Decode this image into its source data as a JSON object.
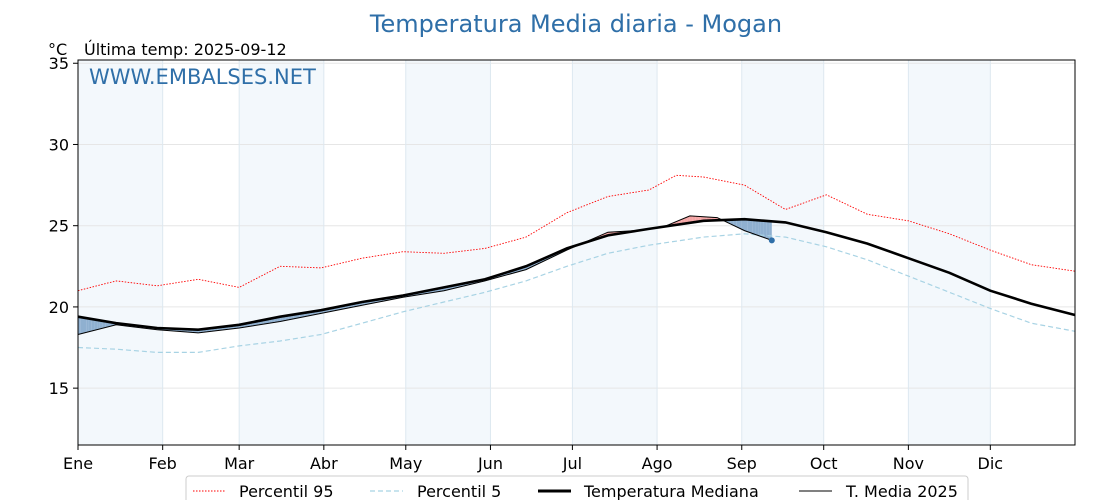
{
  "chart_data": {
    "type": "line",
    "title": "Temperatura Media diaria - Mogan",
    "ylabel": "°C",
    "subtitle": "Última temp: 2025-09-12",
    "watermark": "WWW.EMBALSES.NET",
    "xlim": [
      1,
      366
    ],
    "ylim": [
      11.5,
      35.2
    ],
    "yticks": [
      15,
      20,
      25,
      30,
      35
    ],
    "grid": true,
    "legend_position": "bottom",
    "month_ticks": [
      {
        "label": "Ene",
        "day": 1
      },
      {
        "label": "Feb",
        "day": 32
      },
      {
        "label": "Mar",
        "day": 60
      },
      {
        "label": "Abr",
        "day": 91
      },
      {
        "label": "May",
        "day": 121
      },
      {
        "label": "Jun",
        "day": 152
      },
      {
        "label": "Jul",
        "day": 182
      },
      {
        "label": "Ago",
        "day": 213
      },
      {
        "label": "Sep",
        "day": 244
      },
      {
        "label": "Oct",
        "day": 274
      },
      {
        "label": "Nov",
        "day": 305
      },
      {
        "label": "Dic",
        "day": 335
      }
    ],
    "shaded_month_bands": [
      [
        1,
        32
      ],
      [
        60,
        91
      ],
      [
        121,
        152
      ],
      [
        182,
        213
      ],
      [
        244,
        274
      ],
      [
        305,
        335
      ]
    ],
    "series": [
      {
        "name": "Percentil 95",
        "color": "#ff0000",
        "style": "dotted",
        "x": [
          1,
          15,
          30,
          45,
          60,
          75,
          90,
          105,
          120,
          135,
          150,
          165,
          180,
          195,
          210,
          220,
          230,
          245,
          260,
          275,
          290,
          305,
          320,
          335,
          350,
          366
        ],
        "values": [
          21.0,
          21.6,
          21.3,
          21.7,
          21.2,
          22.5,
          22.4,
          23.0,
          23.4,
          23.3,
          23.6,
          24.3,
          25.8,
          26.8,
          27.2,
          28.1,
          28.0,
          27.5,
          26.0,
          26.9,
          25.7,
          25.3,
          24.5,
          23.5,
          22.6,
          22.2
        ]
      },
      {
        "name": "Percentil 5",
        "color": "#a8d3e4",
        "style": "dashed",
        "x": [
          1,
          15,
          30,
          45,
          60,
          75,
          90,
          105,
          120,
          135,
          150,
          165,
          180,
          195,
          210,
          230,
          245,
          260,
          275,
          290,
          305,
          320,
          335,
          350,
          366
        ],
        "values": [
          17.5,
          17.4,
          17.2,
          17.2,
          17.6,
          17.9,
          18.3,
          19.0,
          19.7,
          20.3,
          20.9,
          21.6,
          22.5,
          23.3,
          23.8,
          24.3,
          24.5,
          24.3,
          23.7,
          22.9,
          21.9,
          20.9,
          19.9,
          19.0,
          18.5
        ]
      },
      {
        "name": "Temperatura Mediana",
        "color": "#000000",
        "style": "solid-thick",
        "x": [
          1,
          15,
          30,
          45,
          60,
          75,
          90,
          105,
          120,
          135,
          150,
          165,
          180,
          195,
          210,
          230,
          245,
          260,
          275,
          290,
          305,
          320,
          335,
          350,
          366
        ],
        "values": [
          19.4,
          19.0,
          18.7,
          18.6,
          18.9,
          19.4,
          19.8,
          20.3,
          20.7,
          21.2,
          21.7,
          22.5,
          23.6,
          24.4,
          24.8,
          25.3,
          25.4,
          25.2,
          24.6,
          23.9,
          23.0,
          22.1,
          21.0,
          20.2,
          19.5
        ]
      },
      {
        "name": "T. Media 2025",
        "color": "#000000",
        "style": "solid-thin",
        "x": [
          1,
          15,
          30,
          45,
          60,
          75,
          90,
          105,
          120,
          135,
          150,
          165,
          180,
          195,
          205,
          215,
          225,
          235,
          245,
          255
        ],
        "values": [
          18.3,
          18.9,
          18.6,
          18.4,
          18.7,
          19.1,
          19.6,
          20.1,
          20.6,
          21.0,
          21.6,
          22.3,
          23.5,
          24.6,
          24.7,
          24.9,
          25.6,
          25.5,
          24.7,
          24.1
        ]
      }
    ]
  },
  "legend": {
    "p95": "Percentil 95",
    "p5": "Percentil 5",
    "median": "Temperatura Mediana",
    "media2025": "T. Media 2025"
  }
}
